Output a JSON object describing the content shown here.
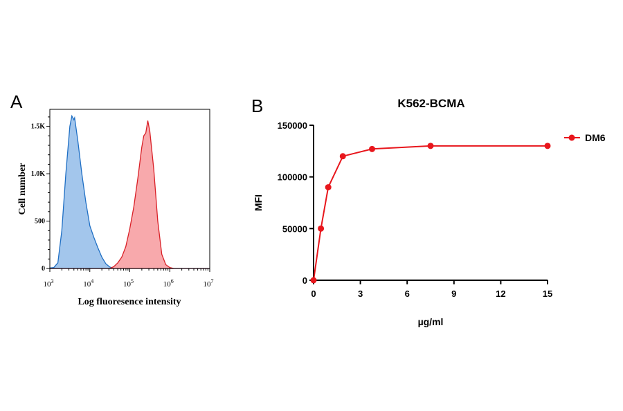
{
  "chart_data": [
    {
      "panel_label": "A",
      "type": "area",
      "xlabel": "Log fluoresence intensity",
      "ylabel": "Cell number",
      "x_scale": "log",
      "xlim": [
        1000,
        10000000
      ],
      "ylim": [
        0,
        1680
      ],
      "x_ticks": [
        {
          "value": 3,
          "base": "10",
          "exp": "3"
        },
        {
          "value": 4,
          "base": "10",
          "exp": "4"
        },
        {
          "value": 5,
          "base": "10",
          "exp": "5"
        },
        {
          "value": 6,
          "base": "10",
          "exp": "6"
        },
        {
          "value": 7,
          "base": "10",
          "exp": "7"
        }
      ],
      "y_ticks": [
        {
          "value": 0,
          "label": "0"
        },
        {
          "value": 500,
          "label": "500"
        },
        {
          "value": 1000,
          "label": "1.0K"
        },
        {
          "value": 1500,
          "label": "1.5K"
        }
      ],
      "series": [
        {
          "color": "#1f6fc4",
          "fill": "#99c0ea",
          "x_log10": [
            3.0,
            3.1,
            3.2,
            3.3,
            3.4,
            3.5,
            3.55,
            3.6,
            3.62,
            3.7,
            3.8,
            3.9,
            4.0,
            4.1,
            4.2,
            4.3,
            4.4,
            4.5,
            4.6,
            4.8,
            7.0
          ],
          "y": [
            5,
            10,
            60,
            400,
            1000,
            1500,
            1610,
            1570,
            1590,
            1350,
            1000,
            700,
            450,
            330,
            220,
            120,
            50,
            15,
            3,
            0,
            0
          ]
        },
        {
          "color": "#d92027",
          "fill": "#f7a0a3",
          "x_log10": [
            3.0,
            4.5,
            4.6,
            4.7,
            4.8,
            4.9,
            5.0,
            5.1,
            5.2,
            5.3,
            5.35,
            5.4,
            5.45,
            5.5,
            5.6,
            5.7,
            5.8,
            5.9,
            6.0,
            6.1,
            7.0
          ],
          "y": [
            0,
            0,
            20,
            60,
            120,
            230,
            420,
            650,
            950,
            1280,
            1400,
            1430,
            1560,
            1450,
            1050,
            500,
            150,
            40,
            10,
            0,
            0
          ]
        }
      ]
    },
    {
      "panel_label": "B",
      "type": "line",
      "title": "K562-BCMA",
      "xlabel": "µg/ml",
      "ylabel": "MFI",
      "xlim": [
        0,
        15
      ],
      "ylim": [
        0,
        150000
      ],
      "x_ticks": [
        0,
        3,
        6,
        9,
        12,
        15
      ],
      "y_ticks": [
        0,
        50000,
        100000,
        150000
      ],
      "legend_position": "right",
      "series": [
        {
          "name": "DM6",
          "color": "#e8161c",
          "x": [
            0,
            0.47,
            0.94,
            1.875,
            3.75,
            7.5,
            15
          ],
          "y": [
            0,
            50000,
            90000,
            120000,
            127000,
            130000,
            130000
          ]
        }
      ]
    }
  ]
}
